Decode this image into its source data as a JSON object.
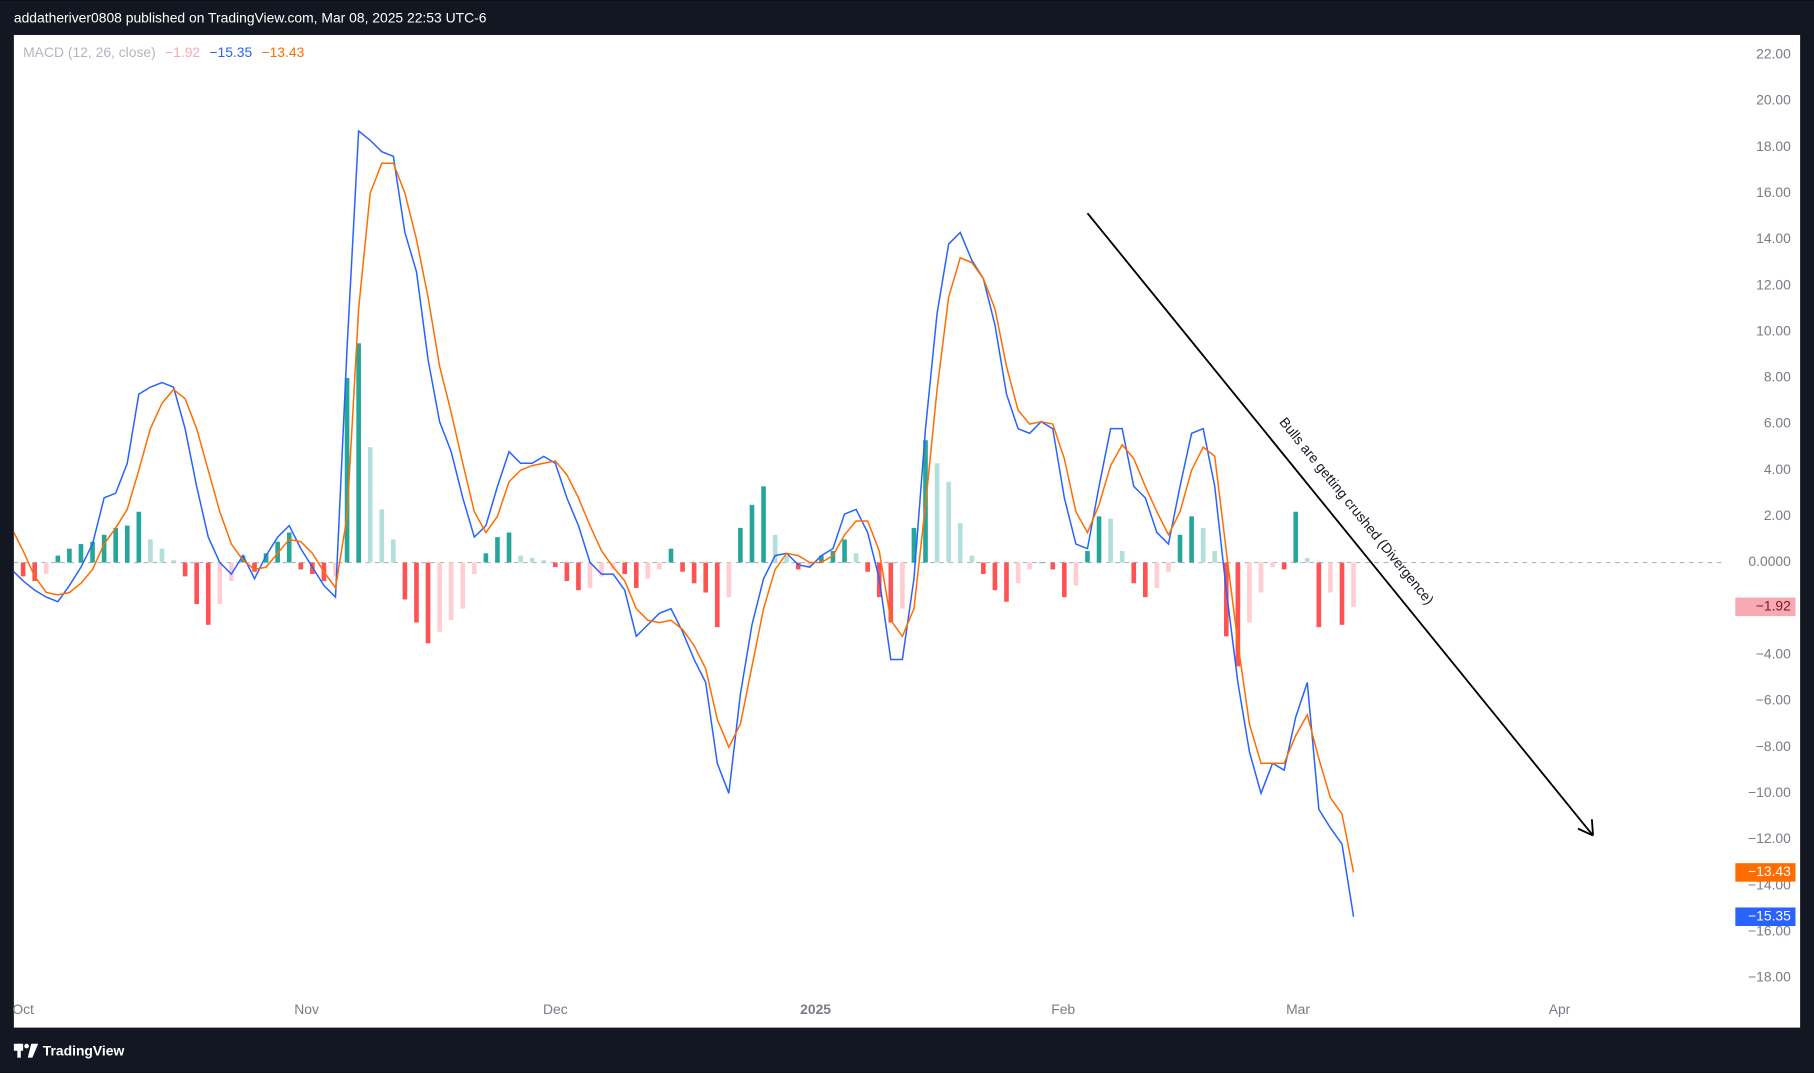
{
  "header": {
    "text": "addatheriver0808 published on TradingView.com, Mar 08, 2025 22:53 UTC-6"
  },
  "footer": {
    "brand": "TradingView"
  },
  "chart_data": {
    "type": "macd",
    "legend": {
      "text": "MACD (12, 26, close)"
    },
    "annotation": {
      "text": "Bulls are getting crushed (Divergence)"
    },
    "xlim": [
      1.2,
      155.6
    ],
    "xticks": [
      {
        "value": 2,
        "label": "Oct"
      },
      {
        "value": 26.5,
        "label": "Nov"
      },
      {
        "value": 48,
        "label": "Dec"
      },
      {
        "value": 70.5,
        "label": "2025",
        "bold": true
      },
      {
        "value": 91.9,
        "label": "Feb"
      },
      {
        "value": 112.2,
        "label": "Mar"
      },
      {
        "value": 134.8,
        "label": "Apr"
      }
    ],
    "ylim": [
      -18.65,
      22.86
    ],
    "yticks": [
      {
        "value": 22,
        "label": "22.00"
      },
      {
        "value": 20,
        "label": "20.00"
      },
      {
        "value": 18,
        "label": "18.00"
      },
      {
        "value": 16,
        "label": "16.00"
      },
      {
        "value": 14,
        "label": "14.00"
      },
      {
        "value": 12,
        "label": "12.00"
      },
      {
        "value": 10,
        "label": "10.00"
      },
      {
        "value": 8,
        "label": "8.00"
      },
      {
        "value": 6,
        "label": "6.00"
      },
      {
        "value": 4,
        "label": "4.00"
      },
      {
        "value": 2,
        "label": "2.00"
      },
      {
        "value": 0,
        "label": "0.0000"
      },
      {
        "value": -4,
        "label": "−4.00"
      },
      {
        "value": -6,
        "label": "−6.00"
      },
      {
        "value": -8,
        "label": "−8.00"
      },
      {
        "value": -10,
        "label": "−10.00"
      },
      {
        "value": -12,
        "label": "−12.00"
      },
      {
        "value": -14,
        "label": "−14.00"
      },
      {
        "value": -16,
        "label": "−16.00"
      },
      {
        "value": -18,
        "label": "−18.00"
      }
    ],
    "x": [
      1,
      2,
      3,
      4,
      5,
      6,
      7,
      8,
      9,
      10,
      11,
      12,
      13,
      14,
      15,
      16,
      17,
      18,
      19,
      20,
      21,
      22,
      23,
      24,
      25,
      26,
      27,
      28,
      29,
      30,
      31,
      32,
      33,
      34,
      35,
      36,
      37,
      38,
      39,
      40,
      41,
      42,
      43,
      44,
      45,
      46,
      47,
      48,
      49,
      50,
      51,
      52,
      53,
      54,
      55,
      56,
      57,
      58,
      59,
      60,
      61,
      62,
      63,
      64,
      65,
      66,
      67,
      68,
      69,
      70,
      71,
      72,
      73,
      74,
      75,
      76,
      77,
      78,
      79,
      80,
      81,
      82,
      83,
      84,
      85,
      86,
      87,
      88,
      89,
      90,
      91,
      92,
      93,
      94,
      95,
      96,
      97,
      98,
      99,
      100,
      101,
      102,
      103,
      104,
      105,
      106,
      107,
      108,
      109,
      110,
      111,
      112,
      113,
      114,
      115,
      116,
      117
    ],
    "hist_colors": [
      "#26a69a",
      "#b2dfdb",
      "#ff5252",
      "#ffcdd2"
    ],
    "series": [
      {
        "style": "histogram",
        "last_label": "−1.92",
        "color": "#f7a9b4",
        "values": [
          -0.5,
          -0.6,
          -0.8,
          -0.5,
          0.3,
          0.6,
          0.8,
          0.9,
          1.2,
          1.5,
          1.6,
          2.2,
          1.0,
          0.6,
          0.1,
          -0.6,
          -1.8,
          -2.7,
          -1.8,
          -0.8,
          0.3,
          -0.4,
          0.4,
          0.9,
          1.3,
          -0.3,
          -0.5,
          -0.8,
          -0.6,
          8.0,
          9.5,
          5.0,
          2.3,
          1.0,
          -1.6,
          -2.6,
          -3.5,
          -3.0,
          -2.5,
          -2.0,
          -0.5,
          0.4,
          1.1,
          1.3,
          0.3,
          0.2,
          0.1,
          -0.2,
          -0.8,
          -1.2,
          -1.1,
          -0.6,
          -0.3,
          -0.5,
          -1.1,
          -0.7,
          -0.3,
          0.6,
          -0.4,
          -0.9,
          -1.3,
          -2.8,
          -1.5,
          1.5,
          2.5,
          3.3,
          1.2,
          0.3,
          -0.3,
          -0.2,
          0.3,
          0.5,
          1.0,
          0.4,
          -0.4,
          -1.5,
          -2.6,
          -2.0,
          1.5,
          5.3,
          4.3,
          3.5,
          1.7,
          0.3,
          -0.5,
          -1.2,
          -1.7,
          -0.9,
          -0.3,
          0.0,
          -0.3,
          -1.5,
          -1.0,
          0.5,
          2.0,
          1.9,
          0.5,
          -0.9,
          -1.5,
          -1.1,
          -0.4,
          1.2,
          2.0,
          1.5,
          0.5,
          -3.2,
          -4.5,
          -2.6,
          -1.3,
          -0.2,
          -0.3,
          2.2,
          0.2,
          -2.8,
          -1.3,
          -2.7,
          -1.92
        ]
      },
      {
        "style": "line",
        "last_label": "−15.35",
        "color": "#2962ff",
        "values": [
          -0.3,
          -0.8,
          -1.2,
          -1.5,
          -1.7,
          -1.0,
          -0.2,
          0.8,
          2.8,
          3.0,
          4.3,
          7.3,
          7.6,
          7.8,
          7.6,
          5.8,
          3.3,
          1.1,
          0,
          -0.5,
          0.3,
          -0.7,
          0.3,
          1.1,
          1.6,
          0.6,
          -0.2,
          -1.0,
          -1.5,
          9.3,
          18.7,
          18.3,
          17.8,
          17.6,
          14.3,
          12.6,
          8.8,
          6.1,
          4.8,
          2.8,
          1.1,
          1.6,
          3.3,
          4.8,
          4.3,
          4.3,
          4.6,
          4.3,
          2.8,
          1.6,
          0,
          -0.5,
          -0.5,
          -1.2,
          -3.2,
          -2.7,
          -2.2,
          -2.0,
          -3.0,
          -4.2,
          -5.2,
          -8.7,
          -10.0,
          -5.7,
          -2.7,
          -0.7,
          0.3,
          0.4,
          -0.1,
          -0.2,
          0.3,
          0.6,
          2.1,
          2.3,
          1.3,
          -0.7,
          -4.2,
          -4.2,
          -0.7,
          5.8,
          10.8,
          13.8,
          14.3,
          13.1,
          12.3,
          10.3,
          7.3,
          5.8,
          5.6,
          6.1,
          5.8,
          2.8,
          0.8,
          0.6,
          3.3,
          5.8,
          5.8,
          3.3,
          2.8,
          1.3,
          0.8,
          3.3,
          5.6,
          5.8,
          3.3,
          -1.2,
          -5.2,
          -8.2,
          -10.0,
          -8.7,
          -9.0,
          -6.7,
          -5.2,
          -10.7,
          -11.5,
          -12.2,
          -15.35
        ]
      },
      {
        "style": "line",
        "last_label": "−13.43",
        "color": "#ff6d00",
        "values": [
          1.5,
          0.5,
          -0.6,
          -1.3,
          -1.4,
          -1.3,
          -0.9,
          -0.3,
          0.8,
          1.5,
          2.3,
          4.0,
          5.8,
          6.9,
          7.5,
          7.1,
          5.8,
          4.0,
          2.2,
          0.8,
          0.1,
          -0.3,
          -0.2,
          0.4,
          1.0,
          0.9,
          0.4,
          -0.4,
          -1.1,
          2.0,
          11.0,
          16.0,
          17.3,
          17.3,
          16.0,
          14.0,
          11.5,
          8.5,
          6.5,
          4.3,
          2.2,
          1.3,
          2.0,
          3.5,
          4.0,
          4.2,
          4.3,
          4.4,
          3.8,
          2.8,
          1.6,
          0.5,
          -0.2,
          -0.8,
          -2.0,
          -2.5,
          -2.6,
          -2.5,
          -2.9,
          -3.6,
          -4.6,
          -6.8,
          -8.0,
          -7.0,
          -4.5,
          -2.0,
          -0.3,
          0.4,
          0.3,
          0.0,
          0.0,
          0.3,
          1.2,
          1.8,
          1.8,
          0.5,
          -2.5,
          -3.2,
          -2.0,
          2.5,
          7.5,
          11.5,
          13.2,
          13.0,
          12.3,
          11.0,
          8.5,
          6.6,
          6.0,
          6.1,
          6.0,
          4.5,
          2.2,
          1.3,
          2.5,
          4.2,
          5.1,
          4.5,
          3.3,
          2.2,
          1.2,
          2.2,
          4.0,
          5.0,
          4.6,
          0.5,
          -3.5,
          -7.0,
          -8.7,
          -8.7,
          -8.7,
          -7.5,
          -6.6,
          -8.5,
          -10.2,
          -10.9,
          -13.43
        ]
      }
    ]
  }
}
